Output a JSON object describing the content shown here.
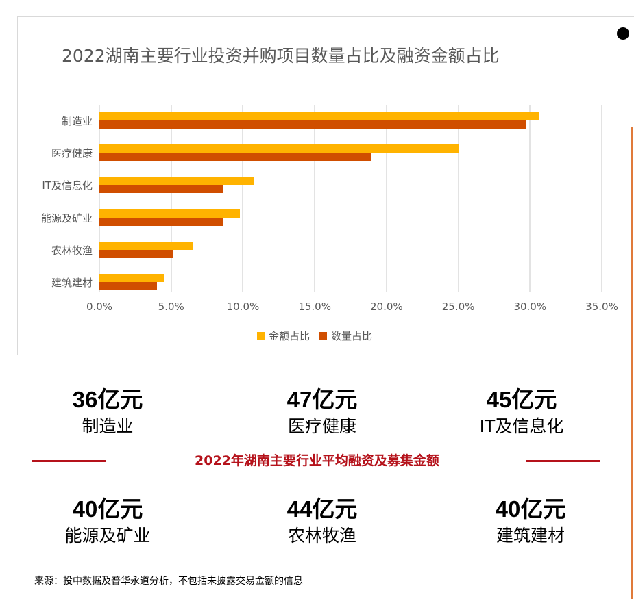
{
  "chart_data": {
    "type": "bar",
    "orientation": "horizontal",
    "title": "2022湖南主要行业投资并购项目数量占比及融资金额占比",
    "categories": [
      "制造业",
      "医疗健康",
      "IT及信息化",
      "能源及矿业",
      "农林牧渔",
      "建筑建材"
    ],
    "series": [
      {
        "name": "金额占比",
        "color": "#ffb300",
        "values": [
          30.6,
          25.0,
          10.8,
          9.8,
          6.5,
          4.5
        ]
      },
      {
        "name": "数量占比",
        "color": "#d04e00",
        "values": [
          29.7,
          18.9,
          8.6,
          8.6,
          5.1,
          4.0
        ]
      }
    ],
    "xlabel": "",
    "ylabel": "",
    "xlim": [
      0,
      35
    ],
    "x_ticks": [
      "0.0%",
      "5.0%",
      "10.0%",
      "15.0%",
      "20.0%",
      "25.0%",
      "30.0%",
      "35.0%"
    ],
    "grid": true,
    "legend_position": "bottom"
  },
  "section": {
    "title": "2022年湖南主要行业平均融资及募集金额",
    "stats": [
      {
        "value": "36亿元",
        "label": "制造业"
      },
      {
        "value": "47亿元",
        "label": "医疗健康"
      },
      {
        "value": "45亿元",
        "label": "IT及信息化"
      },
      {
        "value": "40亿元",
        "label": "能源及矿业"
      },
      {
        "value": "44亿元",
        "label": "农林牧渔"
      },
      {
        "value": "40亿元",
        "label": "建筑建材"
      }
    ]
  },
  "source": "来源：投中数据及普华永道分析，不包括未披露交易金额的信息",
  "colors": {
    "amount": "#ffb300",
    "count": "#d04e00",
    "accent_red": "#b5121b"
  }
}
